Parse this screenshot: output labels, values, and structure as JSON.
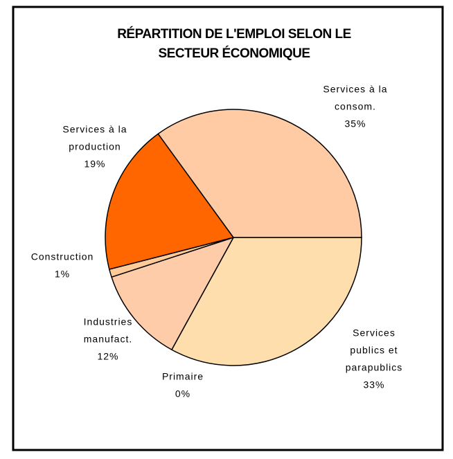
{
  "chart_data": {
    "type": "pie",
    "title": [
      "RÉPARTITION DE L'EMPLOI SELON LE",
      "SECTEUR ÉCONOMIQUE"
    ],
    "categories": [
      [
        "Services",
        "publics et",
        "parapublics"
      ],
      [
        "Primaire"
      ],
      [
        "Industries",
        "manufact."
      ],
      [
        "Construction"
      ],
      [
        "Services à la",
        "production"
      ],
      [
        "Services à la",
        "consom."
      ]
    ],
    "values": [
      33,
      0,
      12,
      1,
      19,
      35
    ],
    "value_labels": [
      "33%",
      "0%",
      "12%",
      "1%",
      "19%",
      "35%"
    ],
    "colors": [
      "#FFDEAD",
      "#FFCC99",
      "#FFCCAA",
      "#FFCC99",
      "#FF6600",
      "#FFCBA4"
    ]
  }
}
